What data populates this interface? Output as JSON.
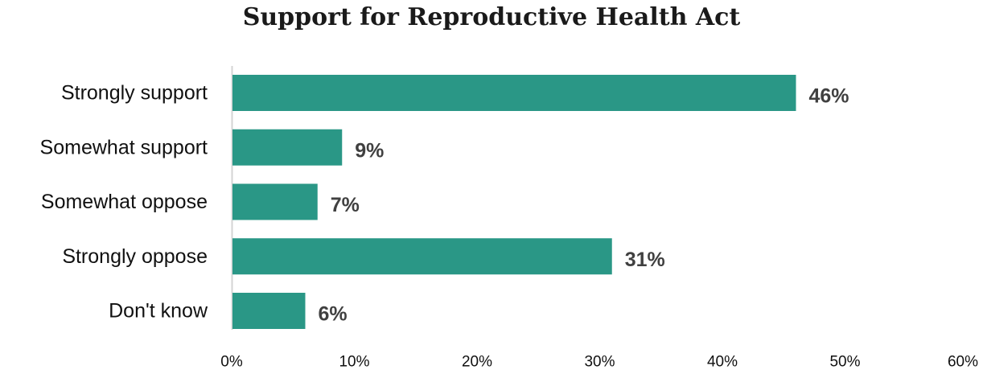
{
  "chart_data": {
    "type": "bar",
    "orientation": "horizontal",
    "title": "Support for Reproductive Health Act",
    "xlabel": "",
    "ylabel": "",
    "categories": [
      "Strongly support",
      "Somewhat support",
      "Somewhat oppose",
      "Strongly oppose",
      "Don't know"
    ],
    "values": [
      46,
      9,
      7,
      31,
      6
    ],
    "value_labels": [
      "46%",
      "9%",
      "7%",
      "31%",
      "6%"
    ],
    "xlim": [
      0,
      60
    ],
    "x_ticks": [
      0,
      10,
      20,
      30,
      40,
      50,
      60
    ],
    "x_tick_labels": [
      "0%",
      "10%",
      "20%",
      "30%",
      "40%",
      "50%",
      "60%"
    ],
    "grid": false,
    "legend": "none",
    "bar_color": "#2a9786"
  }
}
